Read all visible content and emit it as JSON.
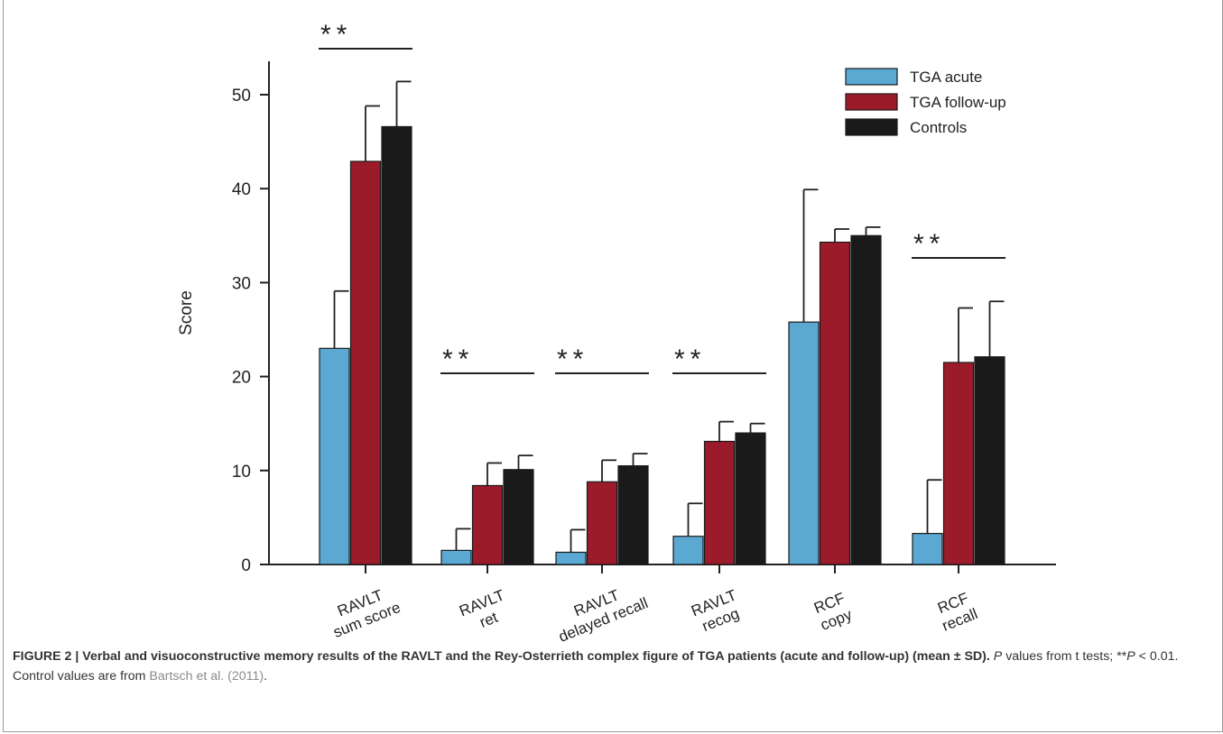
{
  "chart_data": {
    "type": "bar",
    "ylabel": "Score",
    "ylim": [
      0,
      54
    ],
    "yticks": [
      0,
      10,
      20,
      30,
      40,
      50
    ],
    "categories": [
      [
        "RAVLT",
        "sum score"
      ],
      [
        "RAVLT",
        "ret"
      ],
      [
        "RAVLT",
        "delayed recall"
      ],
      [
        "RAVLT",
        "recog"
      ],
      [
        "RCF",
        "copy"
      ],
      [
        "RCF",
        "recall"
      ]
    ],
    "series": [
      {
        "name": "TGA acute",
        "color": "#5ba8d2",
        "values": [
          23,
          1.5,
          1.3,
          3,
          25.8,
          3.3
        ],
        "sd": [
          6.1,
          2.3,
          2.4,
          3.5,
          14.1,
          5.7
        ]
      },
      {
        "name": "TGA follow-up",
        "color": "#9c1b2b",
        "values": [
          42.9,
          8.4,
          8.8,
          13.1,
          34.3,
          21.5
        ],
        "sd": [
          5.9,
          2.4,
          2.3,
          2.1,
          1.4,
          5.8
        ]
      },
      {
        "name": "Controls",
        "color": "#1a1a1a",
        "values": [
          46.6,
          10.1,
          10.5,
          14,
          35,
          22.1
        ],
        "sd": [
          4.8,
          1.5,
          1.3,
          1,
          0.9,
          5.9
        ]
      }
    ],
    "significance": [
      {
        "category_index": 0,
        "label": "**"
      },
      {
        "category_index": 1,
        "label": "**"
      },
      {
        "category_index": 2,
        "label": "**"
      },
      {
        "category_index": 3,
        "label": "**"
      },
      {
        "category_index": 5,
        "label": "**"
      }
    ],
    "legend_position": "top-right"
  },
  "caption": {
    "figure_label": "FIGURE 2 | Verbal and visuoconstructive memory results of the RAVLT and the Rey-Osterrieth complex figure of TGA patients (acute and follow-up) (mean ± SD)",
    "text_p_italic": "P",
    "text_1": " values from t tests; **",
    "text_p2_italic": "P",
    "text_2": " < 0.01. Control values are from ",
    "reference": "Bartsch et al. (2011)",
    "text_end": "."
  }
}
